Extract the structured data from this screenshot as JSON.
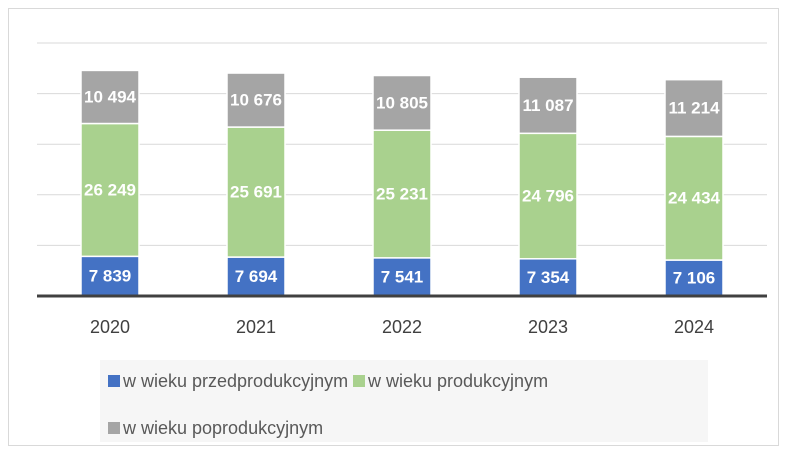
{
  "chart_data": {
    "type": "stacked_bar",
    "categories": [
      "2020",
      "2021",
      "2022",
      "2023",
      "2024"
    ],
    "series": [
      {
        "name": "w wieku przedprodukcyjnym",
        "color": "#4472c4",
        "values": [
          7839,
          7694,
          7541,
          7354,
          7106
        ],
        "value_labels": [
          "7 839",
          "7 694",
          "7 541",
          "7 354",
          "7 106"
        ]
      },
      {
        "name": "w wieku produkcyjnym",
        "color": "#a9d18e",
        "values": [
          26249,
          25691,
          25231,
          24796,
          24434
        ],
        "value_labels": [
          "26 249",
          "25 691",
          "25 231",
          "24 796",
          "24 434"
        ]
      },
      {
        "name": "w wieku poprodukcyjnym",
        "color": "#a5a5a5",
        "values": [
          10494,
          10676,
          10805,
          11087,
          11214
        ],
        "value_labels": [
          "10 494",
          "10 676",
          "10 805",
          "11 087",
          "11 214"
        ]
      }
    ],
    "ylim": [
      0,
      50000
    ],
    "yticks": [
      0,
      10000,
      20000,
      30000,
      40000,
      50000
    ],
    "grid": true,
    "legend": "bottom"
  }
}
